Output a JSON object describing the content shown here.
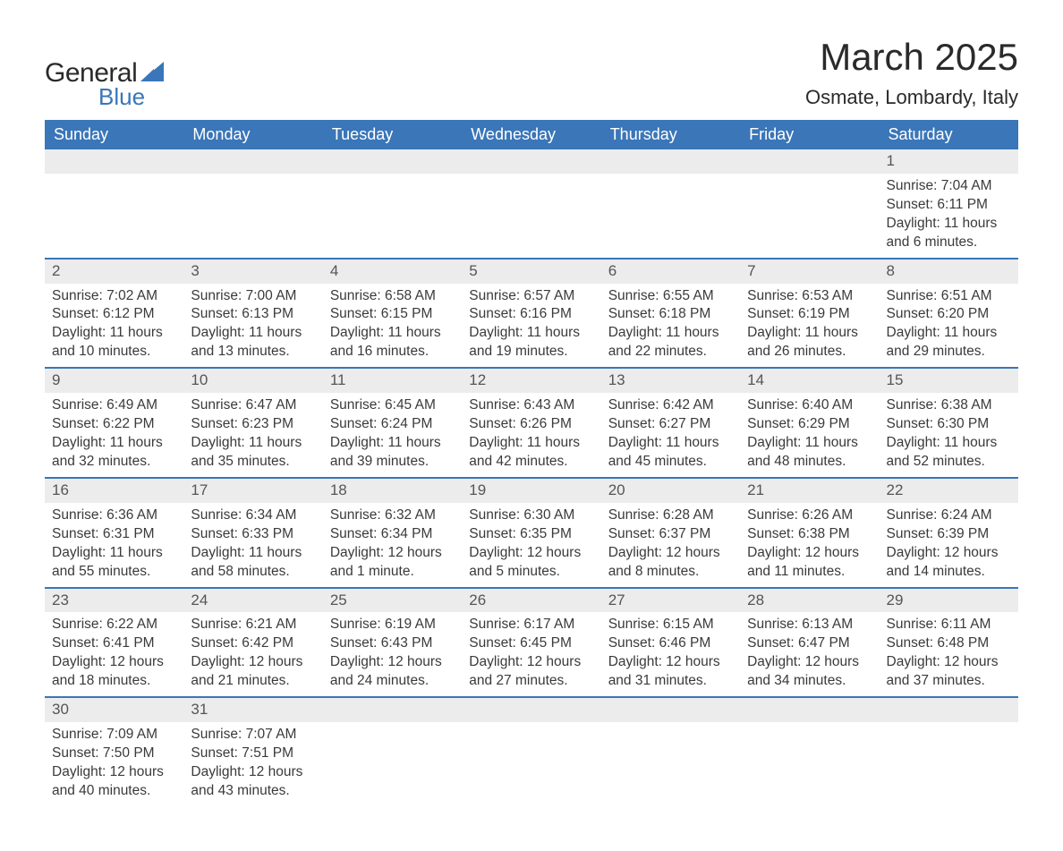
{
  "brand": {
    "text_general": "General",
    "text_blue": "Blue",
    "color_blue": "#3a76b8",
    "color_text": "#2a2a2a"
  },
  "title": {
    "month": "March 2025",
    "location": "Osmate, Lombardy, Italy"
  },
  "calendar": {
    "header_bg": "#3a76b8",
    "header_fg": "#ffffff",
    "row_divider": "#3a76b8",
    "daynum_bg": "#ececec",
    "text_color": "#3a3a3a",
    "font_size_body": 15.5,
    "font_size_header": 18,
    "font_size_daynum": 17,
    "days_of_week": [
      "Sunday",
      "Monday",
      "Tuesday",
      "Wednesday",
      "Thursday",
      "Friday",
      "Saturday"
    ],
    "weeks": [
      [
        null,
        null,
        null,
        null,
        null,
        null,
        {
          "n": "1",
          "sunrise": "Sunrise: 7:04 AM",
          "sunset": "Sunset: 6:11 PM",
          "daylight": "Daylight: 11 hours and 6 minutes."
        }
      ],
      [
        {
          "n": "2",
          "sunrise": "Sunrise: 7:02 AM",
          "sunset": "Sunset: 6:12 PM",
          "daylight": "Daylight: 11 hours and 10 minutes."
        },
        {
          "n": "3",
          "sunrise": "Sunrise: 7:00 AM",
          "sunset": "Sunset: 6:13 PM",
          "daylight": "Daylight: 11 hours and 13 minutes."
        },
        {
          "n": "4",
          "sunrise": "Sunrise: 6:58 AM",
          "sunset": "Sunset: 6:15 PM",
          "daylight": "Daylight: 11 hours and 16 minutes."
        },
        {
          "n": "5",
          "sunrise": "Sunrise: 6:57 AM",
          "sunset": "Sunset: 6:16 PM",
          "daylight": "Daylight: 11 hours and 19 minutes."
        },
        {
          "n": "6",
          "sunrise": "Sunrise: 6:55 AM",
          "sunset": "Sunset: 6:18 PM",
          "daylight": "Daylight: 11 hours and 22 minutes."
        },
        {
          "n": "7",
          "sunrise": "Sunrise: 6:53 AM",
          "sunset": "Sunset: 6:19 PM",
          "daylight": "Daylight: 11 hours and 26 minutes."
        },
        {
          "n": "8",
          "sunrise": "Sunrise: 6:51 AM",
          "sunset": "Sunset: 6:20 PM",
          "daylight": "Daylight: 11 hours and 29 minutes."
        }
      ],
      [
        {
          "n": "9",
          "sunrise": "Sunrise: 6:49 AM",
          "sunset": "Sunset: 6:22 PM",
          "daylight": "Daylight: 11 hours and 32 minutes."
        },
        {
          "n": "10",
          "sunrise": "Sunrise: 6:47 AM",
          "sunset": "Sunset: 6:23 PM",
          "daylight": "Daylight: 11 hours and 35 minutes."
        },
        {
          "n": "11",
          "sunrise": "Sunrise: 6:45 AM",
          "sunset": "Sunset: 6:24 PM",
          "daylight": "Daylight: 11 hours and 39 minutes."
        },
        {
          "n": "12",
          "sunrise": "Sunrise: 6:43 AM",
          "sunset": "Sunset: 6:26 PM",
          "daylight": "Daylight: 11 hours and 42 minutes."
        },
        {
          "n": "13",
          "sunrise": "Sunrise: 6:42 AM",
          "sunset": "Sunset: 6:27 PM",
          "daylight": "Daylight: 11 hours and 45 minutes."
        },
        {
          "n": "14",
          "sunrise": "Sunrise: 6:40 AM",
          "sunset": "Sunset: 6:29 PM",
          "daylight": "Daylight: 11 hours and 48 minutes."
        },
        {
          "n": "15",
          "sunrise": "Sunrise: 6:38 AM",
          "sunset": "Sunset: 6:30 PM",
          "daylight": "Daylight: 11 hours and 52 minutes."
        }
      ],
      [
        {
          "n": "16",
          "sunrise": "Sunrise: 6:36 AM",
          "sunset": "Sunset: 6:31 PM",
          "daylight": "Daylight: 11 hours and 55 minutes."
        },
        {
          "n": "17",
          "sunrise": "Sunrise: 6:34 AM",
          "sunset": "Sunset: 6:33 PM",
          "daylight": "Daylight: 11 hours and 58 minutes."
        },
        {
          "n": "18",
          "sunrise": "Sunrise: 6:32 AM",
          "sunset": "Sunset: 6:34 PM",
          "daylight": "Daylight: 12 hours and 1 minute."
        },
        {
          "n": "19",
          "sunrise": "Sunrise: 6:30 AM",
          "sunset": "Sunset: 6:35 PM",
          "daylight": "Daylight: 12 hours and 5 minutes."
        },
        {
          "n": "20",
          "sunrise": "Sunrise: 6:28 AM",
          "sunset": "Sunset: 6:37 PM",
          "daylight": "Daylight: 12 hours and 8 minutes."
        },
        {
          "n": "21",
          "sunrise": "Sunrise: 6:26 AM",
          "sunset": "Sunset: 6:38 PM",
          "daylight": "Daylight: 12 hours and 11 minutes."
        },
        {
          "n": "22",
          "sunrise": "Sunrise: 6:24 AM",
          "sunset": "Sunset: 6:39 PM",
          "daylight": "Daylight: 12 hours and 14 minutes."
        }
      ],
      [
        {
          "n": "23",
          "sunrise": "Sunrise: 6:22 AM",
          "sunset": "Sunset: 6:41 PM",
          "daylight": "Daylight: 12 hours and 18 minutes."
        },
        {
          "n": "24",
          "sunrise": "Sunrise: 6:21 AM",
          "sunset": "Sunset: 6:42 PM",
          "daylight": "Daylight: 12 hours and 21 minutes."
        },
        {
          "n": "25",
          "sunrise": "Sunrise: 6:19 AM",
          "sunset": "Sunset: 6:43 PM",
          "daylight": "Daylight: 12 hours and 24 minutes."
        },
        {
          "n": "26",
          "sunrise": "Sunrise: 6:17 AM",
          "sunset": "Sunset: 6:45 PM",
          "daylight": "Daylight: 12 hours and 27 minutes."
        },
        {
          "n": "27",
          "sunrise": "Sunrise: 6:15 AM",
          "sunset": "Sunset: 6:46 PM",
          "daylight": "Daylight: 12 hours and 31 minutes."
        },
        {
          "n": "28",
          "sunrise": "Sunrise: 6:13 AM",
          "sunset": "Sunset: 6:47 PM",
          "daylight": "Daylight: 12 hours and 34 minutes."
        },
        {
          "n": "29",
          "sunrise": "Sunrise: 6:11 AM",
          "sunset": "Sunset: 6:48 PM",
          "daylight": "Daylight: 12 hours and 37 minutes."
        }
      ],
      [
        {
          "n": "30",
          "sunrise": "Sunrise: 7:09 AM",
          "sunset": "Sunset: 7:50 PM",
          "daylight": "Daylight: 12 hours and 40 minutes."
        },
        {
          "n": "31",
          "sunrise": "Sunrise: 7:07 AM",
          "sunset": "Sunset: 7:51 PM",
          "daylight": "Daylight: 12 hours and 43 minutes."
        },
        null,
        null,
        null,
        null,
        null
      ]
    ]
  }
}
